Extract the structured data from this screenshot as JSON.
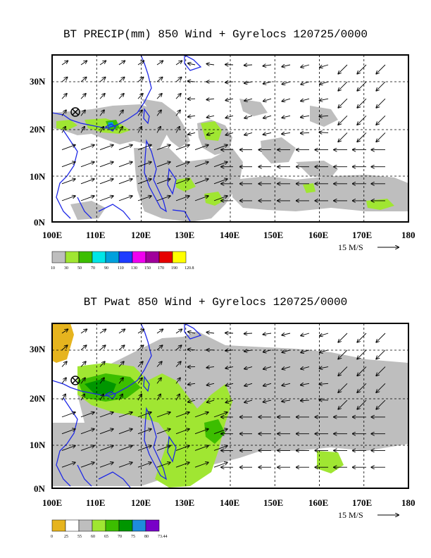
{
  "panels": [
    {
      "title": "BT PRECIP(mm) 850 Wind + Gyrelocs 120725/0000",
      "lat_labels": [
        "30N",
        "20N",
        "10N",
        "0N"
      ],
      "lon_labels": [
        "100E",
        "110E",
        "120E",
        "130E",
        "140E",
        "150E",
        "160E",
        "170E",
        "180"
      ],
      "scale_label": "15 M/S",
      "legend": {
        "colors": [
          "#bebebe",
          "#a0e632",
          "#3cbe00",
          "#00e6e6",
          "#00a0dc",
          "#1e3cff",
          "#f000f0",
          "#a0009b",
          "#e60000",
          "#ffff00"
        ],
        "labels": [
          "10",
          "30",
          "50",
          "70",
          "90",
          "110",
          "130",
          "150",
          "170",
          "190",
          "120.8"
        ]
      }
    },
    {
      "title": "BT Pwat 850 Wind + Gyrelocs 120725/0000",
      "lat_labels": [
        "30N",
        "20N",
        "10N",
        "0N"
      ],
      "lon_labels": [
        "100E",
        "110E",
        "120E",
        "130E",
        "140E",
        "150E",
        "160E",
        "170E",
        "180"
      ],
      "scale_label": "15 M/S",
      "legend": {
        "colors": [
          "#e6b41e",
          "#ffffff",
          "#bebebe",
          "#a0e632",
          "#3cbe00",
          "#009600",
          "#1e8cdc",
          "#7800c8"
        ],
        "labels": [
          "0",
          "25",
          "55",
          "60",
          "65",
          "70",
          "75",
          "80",
          "73.44"
        ]
      }
    }
  ],
  "gyre_marker": "circle-x-icon"
}
